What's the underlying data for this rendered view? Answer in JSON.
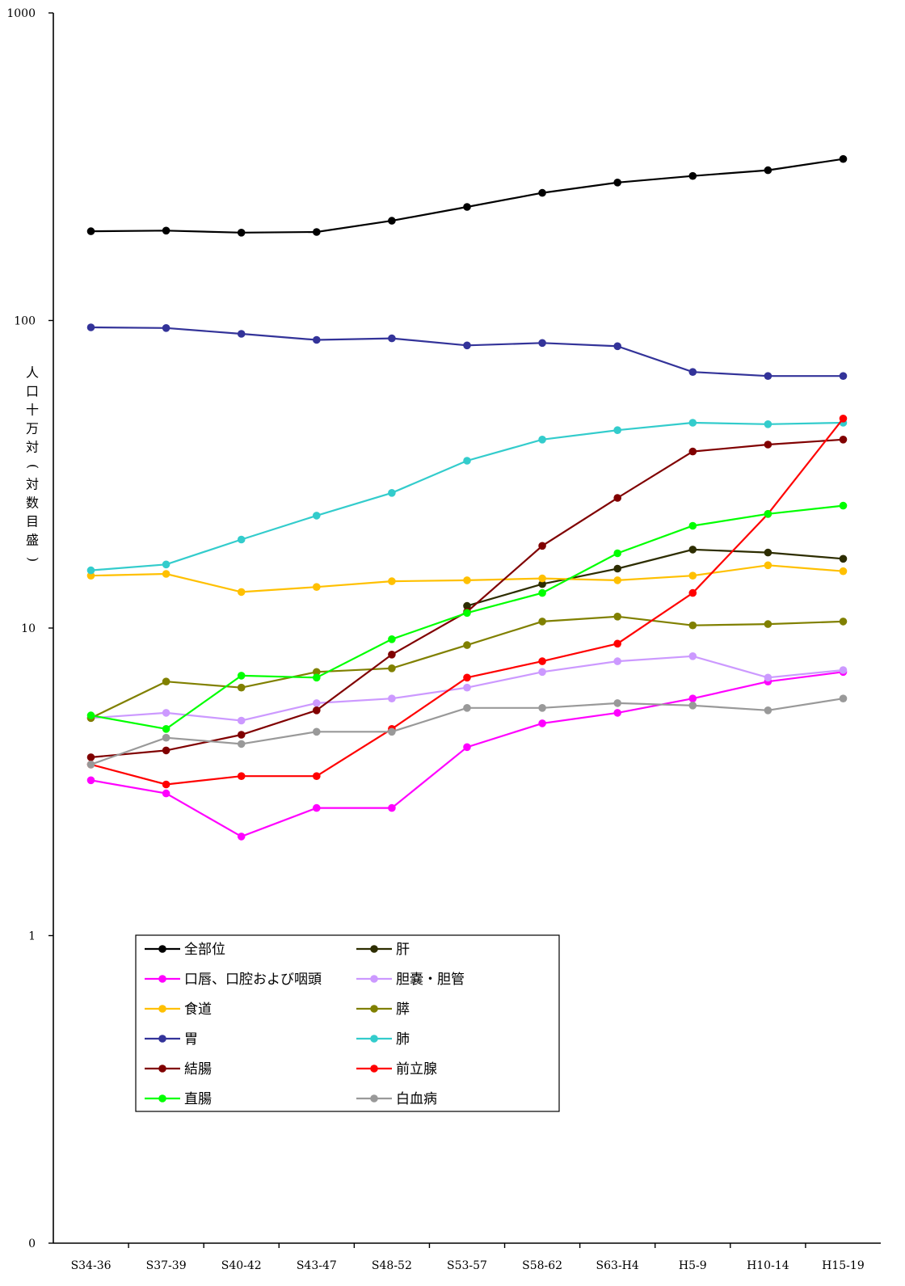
{
  "chart_data": {
    "type": "line",
    "title": "",
    "xlabel": "",
    "ylabel": "人口十万対(対数目盛)",
    "yscale": "log",
    "ylim": [
      0.1,
      1000
    ],
    "y_tick_labels": [
      "0",
      "1",
      "10",
      "100",
      "1000"
    ],
    "y_tick_values": [
      0.1,
      1,
      10,
      100,
      1000
    ],
    "categories": [
      "S34-36",
      "S37-39",
      "S40-42",
      "S43-47",
      "S48-52",
      "S53-57",
      "S58-62",
      "S63-H4",
      "H5-9",
      "H10-14",
      "H15-19"
    ],
    "grid": false,
    "legend_position": "bottom-left",
    "series": [
      {
        "name": "全部位",
        "color": "#000000",
        "values": [
          195,
          196,
          193,
          194,
          211,
          234,
          260,
          281,
          295,
          308,
          335
        ]
      },
      {
        "name": "肝",
        "color": "#2d2d00",
        "values": [
          null,
          null,
          null,
          null,
          null,
          11.8,
          13.9,
          15.6,
          18,
          17.6,
          16.8
        ]
      },
      {
        "name": "口唇、口腔および咽頭",
        "color": "#ff00ff",
        "values": [
          3.2,
          2.9,
          2.1,
          2.6,
          2.6,
          4.1,
          4.9,
          5.3,
          5.9,
          6.7,
          7.2
        ]
      },
      {
        "name": "胆嚢・胆管",
        "color": "#cc99ff",
        "values": [
          5.1,
          5.3,
          5.0,
          5.7,
          5.9,
          6.4,
          7.2,
          7.8,
          8.1,
          6.9,
          7.3
        ]
      },
      {
        "name": "食道",
        "color": "#ffc000",
        "values": [
          14.8,
          15.0,
          13.1,
          13.6,
          14.2,
          14.3,
          14.5,
          14.3,
          14.8,
          16.0,
          15.3
        ]
      },
      {
        "name": "膵",
        "color": "#808000",
        "values": [
          5.1,
          6.7,
          6.4,
          7.2,
          7.4,
          8.8,
          10.5,
          10.9,
          10.2,
          10.3,
          10.5
        ]
      },
      {
        "name": "胃",
        "color": "#333399",
        "values": [
          95,
          94.5,
          90.5,
          86.5,
          87.5,
          83,
          84.5,
          82.5,
          68,
          66,
          66
        ]
      },
      {
        "name": "肺",
        "color": "#33cccc",
        "values": [
          15.4,
          16.1,
          19.4,
          23.2,
          27.5,
          35,
          41,
          44,
          46.5,
          46,
          46.5
        ]
      },
      {
        "name": "結腸",
        "color": "#800000",
        "values": [
          3.8,
          4.0,
          4.5,
          5.4,
          8.2,
          11.3,
          18.5,
          26.5,
          37.5,
          39.5,
          41
        ]
      },
      {
        "name": "前立腺",
        "color": "#ff0000",
        "values": [
          3.6,
          3.1,
          3.3,
          3.3,
          4.7,
          6.9,
          7.8,
          8.9,
          13,
          23.5,
          48
        ]
      },
      {
        "name": "直腸",
        "color": "#00ff00",
        "values": [
          5.2,
          4.7,
          7.0,
          6.9,
          9.2,
          11.2,
          13,
          17.5,
          21.5,
          23.5,
          25
        ]
      },
      {
        "name": "白血病",
        "color": "#999999",
        "values": [
          3.6,
          4.4,
          4.2,
          4.6,
          4.6,
          5.5,
          5.5,
          5.7,
          5.6,
          5.4,
          5.9
        ]
      }
    ],
    "legend_order": [
      "全部位",
      "肝",
      "口唇、口腔および咽頭",
      "胆嚢・胆管",
      "食道",
      "膵",
      "胃",
      "肺",
      "結腸",
      "前立腺",
      "直腸",
      "白血病"
    ]
  }
}
